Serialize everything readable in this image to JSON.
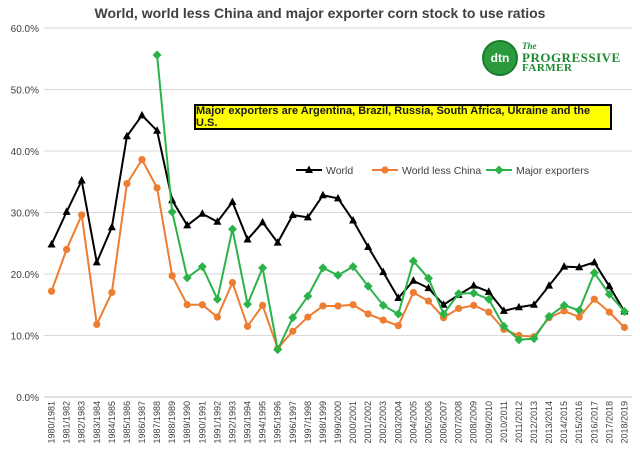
{
  "chart_data": {
    "type": "line",
    "title": "World, world less China and major exporter corn stock to use ratios",
    "annotation": "Major exporters are Argentina, Brazil, Russia, South Africa, Ukraine and the U.S.",
    "logo": {
      "circle_text": "dtn",
      "line1": "The",
      "line2": "PROGRESSIVE",
      "line3": "FARMER"
    },
    "xlabel": "",
    "ylabel": "",
    "ylim": [
      0,
      60
    ],
    "y_ticks": [
      "0.0%",
      "10.0%",
      "20.0%",
      "30.0%",
      "40.0%",
      "50.0%",
      "60.0%"
    ],
    "grid": true,
    "legend_position": "right, below annotation",
    "categories": [
      "1980/1981",
      "1981/1982",
      "1982/1983",
      "1983/1984",
      "1984/1985",
      "1985/1986",
      "1986/1987",
      "1987/1988",
      "1988/1989",
      "1989/1990",
      "1990/1991",
      "1991/1992",
      "1992/1993",
      "1993/1994",
      "1994/1995",
      "1995/1996",
      "1996/1997",
      "1997/1998",
      "1998/1999",
      "1999/2000",
      "2000/2001",
      "2001/2002",
      "2002/2003",
      "2003/2004",
      "2004/2005",
      "2005/2006",
      "2006/2007",
      "2007/2008",
      "2008/2009",
      "2009/2010",
      "2010/2011",
      "2011/2012",
      "2012/2013",
      "2013/2014",
      "2014/2015",
      "2015/2016",
      "2016/2017",
      "2017/2018",
      "2018/2019"
    ],
    "series": [
      {
        "name": "World",
        "color": "#000000",
        "marker": "triangle",
        "values": [
          24.8,
          30.1,
          35.2,
          21.9,
          27.6,
          42.4,
          45.8,
          43.3,
          32.0,
          27.9,
          29.8,
          28.5,
          31.7,
          25.6,
          28.4,
          25.1,
          29.6,
          29.2,
          32.8,
          32.3,
          28.7,
          24.4,
          20.3,
          16.1,
          18.9,
          17.7,
          15.0,
          16.6,
          18.1,
          17.1,
          14.0,
          14.6,
          15.0,
          18.1,
          21.2,
          21.1,
          21.9,
          18.0,
          13.9
        ]
      },
      {
        "name": "World less China",
        "color": "#ed7d31",
        "marker": "circle",
        "values": [
          17.2,
          24.0,
          29.6,
          11.8,
          17.0,
          34.7,
          38.6,
          34.0,
          19.7,
          15.0,
          15.0,
          13.0,
          18.6,
          11.5,
          14.9,
          7.9,
          10.7,
          13.0,
          14.8,
          14.8,
          15.0,
          13.5,
          12.5,
          11.6,
          17.0,
          15.6,
          12.9,
          14.4,
          14.9,
          13.8,
          11.0,
          10.0,
          9.8,
          12.9,
          14.0,
          13.0,
          15.9,
          13.8,
          11.3
        ]
      },
      {
        "name": "Major exporters",
        "color": "#2bb34a",
        "marker": "diamond",
        "values": [
          null,
          null,
          null,
          null,
          null,
          null,
          null,
          55.6,
          30.1,
          19.4,
          21.2,
          15.9,
          27.3,
          15.1,
          21.0,
          7.7,
          12.9,
          16.4,
          21.0,
          19.8,
          21.2,
          18.0,
          14.9,
          13.5,
          22.1,
          19.3,
          13.5,
          16.8,
          16.9,
          15.9,
          11.5,
          9.3,
          9.5,
          13.1,
          14.9,
          14.1,
          20.2,
          16.7,
          13.9
        ]
      }
    ]
  }
}
